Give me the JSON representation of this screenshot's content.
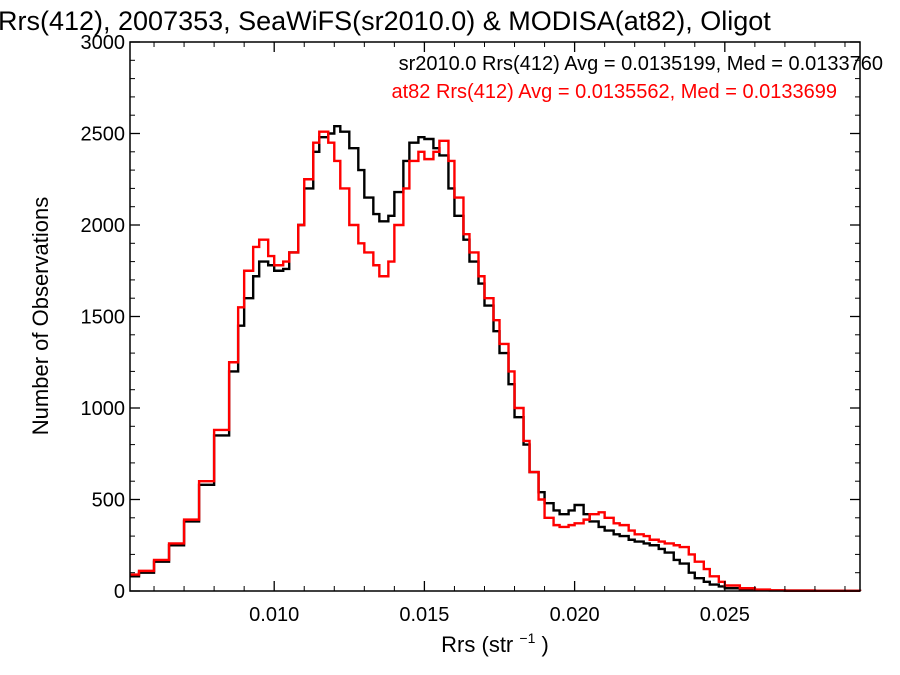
{
  "chart_data": {
    "type": "line",
    "title": "Rrs(412), 2007353, SeaWiFS(sr2010.0) & MODISA(at82), Oligot",
    "xlabel": "Rrs (str",
    "xlabel_sup": "−1",
    "xlabel_suffix": ")",
    "ylabel": "Number of Observations",
    "xlim": [
      0.0052,
      0.0295
    ],
    "ylim": [
      0,
      3000
    ],
    "xticks": [
      0.01,
      0.015,
      0.02,
      0.025
    ],
    "xtick_labels": [
      "0.010",
      "0.015",
      "0.020",
      "0.025"
    ],
    "yticks": [
      0,
      500,
      1000,
      1500,
      2000,
      2500,
      3000
    ],
    "ytick_labels": [
      "0",
      "500",
      "1000",
      "1500",
      "2000",
      "2500",
      "3000"
    ],
    "grid": false,
    "legend_placement": "top-right",
    "colors": {
      "black": "#000000",
      "red": "#ff0000"
    },
    "series": [
      {
        "name": "sr2010.0",
        "annotation": "sr2010.0 Rrs(412) Avg = 0.0135199, Med = 0.0133760",
        "color": "#000000",
        "x": [
          0.0052,
          0.0055,
          0.006,
          0.0065,
          0.007,
          0.0075,
          0.008,
          0.0085,
          0.0088,
          0.009,
          0.0093,
          0.0095,
          0.0098,
          0.01,
          0.0103,
          0.0105,
          0.0108,
          0.011,
          0.0113,
          0.0115,
          0.0118,
          0.012,
          0.0122,
          0.0125,
          0.0128,
          0.013,
          0.0133,
          0.0135,
          0.0138,
          0.014,
          0.0143,
          0.0145,
          0.0148,
          0.015,
          0.0153,
          0.0155,
          0.0158,
          0.016,
          0.0163,
          0.0165,
          0.0168,
          0.017,
          0.0173,
          0.0175,
          0.0178,
          0.018,
          0.0183,
          0.0185,
          0.0188,
          0.019,
          0.0193,
          0.0195,
          0.0198,
          0.02,
          0.0203,
          0.0205,
          0.0208,
          0.021,
          0.0213,
          0.0215,
          0.0218,
          0.022,
          0.0223,
          0.0225,
          0.0228,
          0.023,
          0.0233,
          0.0235,
          0.0238,
          0.024,
          0.0243,
          0.0245,
          0.0248,
          0.025,
          0.0255,
          0.026,
          0.0265,
          0.027,
          0.028,
          0.0295
        ],
        "y": [
          80,
          100,
          160,
          250,
          380,
          580,
          850,
          1200,
          1450,
          1600,
          1720,
          1800,
          1780,
          1750,
          1760,
          1850,
          2000,
          2200,
          2400,
          2480,
          2500,
          2540,
          2510,
          2420,
          2300,
          2150,
          2060,
          2020,
          2050,
          2180,
          2350,
          2450,
          2480,
          2470,
          2420,
          2380,
          2200,
          2050,
          1920,
          1800,
          1680,
          1560,
          1420,
          1300,
          1130,
          950,
          800,
          650,
          540,
          480,
          440,
          420,
          440,
          470,
          420,
          380,
          350,
          330,
          310,
          300,
          280,
          270,
          260,
          250,
          230,
          210,
          170,
          150,
          100,
          70,
          50,
          35,
          25,
          15,
          10,
          5,
          3,
          2,
          1,
          0
        ]
      },
      {
        "name": "at82",
        "annotation": "at82 Rrs(412) Avg = 0.0135562, Med = 0.0133699",
        "color": "#ff0000",
        "x": [
          0.0052,
          0.0055,
          0.006,
          0.0065,
          0.007,
          0.0075,
          0.008,
          0.0085,
          0.0088,
          0.009,
          0.0093,
          0.0095,
          0.0098,
          0.01,
          0.0103,
          0.0105,
          0.0108,
          0.011,
          0.0113,
          0.0115,
          0.0118,
          0.012,
          0.0122,
          0.0125,
          0.0128,
          0.013,
          0.0133,
          0.0135,
          0.0138,
          0.014,
          0.0143,
          0.0145,
          0.0148,
          0.015,
          0.0153,
          0.0155,
          0.0158,
          0.016,
          0.0163,
          0.0165,
          0.0168,
          0.017,
          0.0173,
          0.0175,
          0.0178,
          0.018,
          0.0183,
          0.0185,
          0.0188,
          0.019,
          0.0193,
          0.0195,
          0.0198,
          0.02,
          0.0203,
          0.0205,
          0.0208,
          0.021,
          0.0213,
          0.0215,
          0.0218,
          0.022,
          0.0223,
          0.0225,
          0.0228,
          0.023,
          0.0233,
          0.0235,
          0.0238,
          0.024,
          0.0243,
          0.0245,
          0.0248,
          0.025,
          0.0255,
          0.026,
          0.0265,
          0.027,
          0.028,
          0.0295
        ],
        "y": [
          90,
          110,
          170,
          260,
          390,
          600,
          880,
          1250,
          1550,
          1750,
          1880,
          1920,
          1830,
          1780,
          1800,
          1850,
          2000,
          2250,
          2450,
          2510,
          2450,
          2350,
          2200,
          2000,
          1900,
          1850,
          1780,
          1720,
          1800,
          2000,
          2200,
          2350,
          2400,
          2360,
          2400,
          2460,
          2350,
          2150,
          1950,
          1850,
          1720,
          1600,
          1480,
          1350,
          1200,
          1000,
          820,
          650,
          500,
          400,
          360,
          350,
          360,
          370,
          390,
          420,
          430,
          400,
          370,
          360,
          330,
          310,
          300,
          280,
          270,
          260,
          250,
          240,
          200,
          160,
          120,
          80,
          50,
          30,
          15,
          8,
          4,
          2,
          1,
          0
        ]
      }
    ]
  }
}
